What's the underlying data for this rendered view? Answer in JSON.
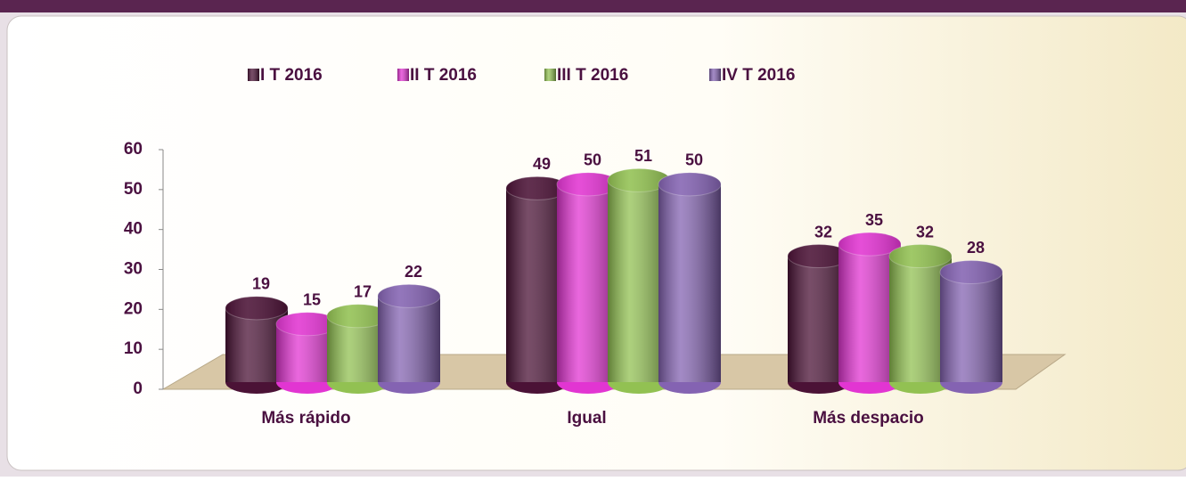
{
  "chart_data": {
    "type": "bar3d",
    "categories": [
      "Más rápido",
      "Igual",
      "Más despacio"
    ],
    "series": [
      {
        "name": "I T 2016",
        "color": "#4b1236",
        "values": [
          19,
          49,
          32
        ]
      },
      {
        "name": "II T 2016",
        "color": "#e235d2",
        "values": [
          15,
          50,
          35
        ]
      },
      {
        "name": "III T 2016",
        "color": "#92c152",
        "values": [
          17,
          51,
          32
        ]
      },
      {
        "name": "IV T 2016",
        "color": "#8463b2",
        "values": [
          22,
          50,
          28
        ]
      }
    ],
    "ylim": [
      0,
      60
    ],
    "yticks": [
      0,
      10,
      20,
      30,
      40,
      50,
      60
    ],
    "legend": "top"
  }
}
